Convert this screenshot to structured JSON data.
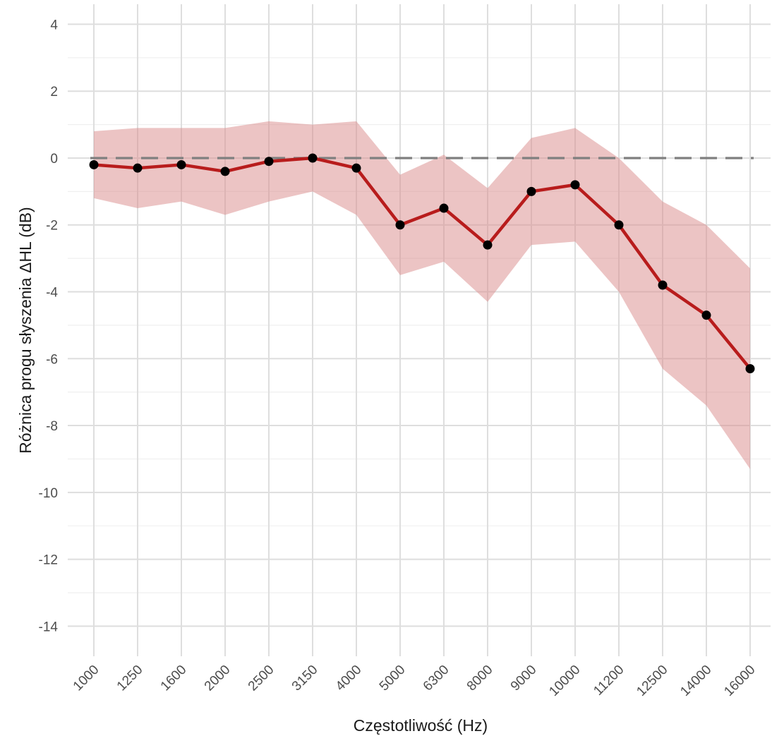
{
  "chart_data": {
    "type": "line",
    "xlabel": "Częstotliwość (Hz)",
    "ylabel": "Różnica progu słyszenia ΔHL (dB)",
    "categories": [
      "1000",
      "1250",
      "1600",
      "2000",
      "2500",
      "3150",
      "4000",
      "5000",
      "6300",
      "8000",
      "9000",
      "10000",
      "11200",
      "12500",
      "14000",
      "16000"
    ],
    "series": [
      {
        "values": [
          -0.2,
          -0.3,
          -0.2,
          -0.4,
          -0.1,
          0.0,
          -0.3,
          -2.0,
          -1.5,
          -2.6,
          -1.0,
          -0.8,
          -2.0,
          -3.8,
          -4.7,
          -6.3
        ],
        "upper": [
          0.8,
          0.9,
          0.9,
          0.9,
          1.1,
          1.0,
          1.1,
          -0.5,
          0.1,
          -0.9,
          0.6,
          0.9,
          0.0,
          -1.3,
          -2.0,
          -3.3
        ],
        "lower": [
          -1.2,
          -1.5,
          -1.3,
          -1.7,
          -1.3,
          -1.0,
          -1.7,
          -3.5,
          -3.1,
          -4.3,
          -2.6,
          -2.5,
          -4.0,
          -6.3,
          -7.4,
          -9.3
        ]
      }
    ],
    "reference_line": {
      "y": 0,
      "style": "dashed",
      "color": "#7f7f7f"
    },
    "ylim": [
      -14.9,
      4.6
    ],
    "yticks": [
      4,
      2,
      0,
      -2,
      -4,
      -6,
      -8,
      -10,
      -12,
      -14
    ],
    "grid": true,
    "colors": {
      "line": "#b81c1c",
      "ribbon": "#d98a8a",
      "points": "#000000",
      "grid_major": "#dedede",
      "grid_minor": "#efefef"
    }
  }
}
